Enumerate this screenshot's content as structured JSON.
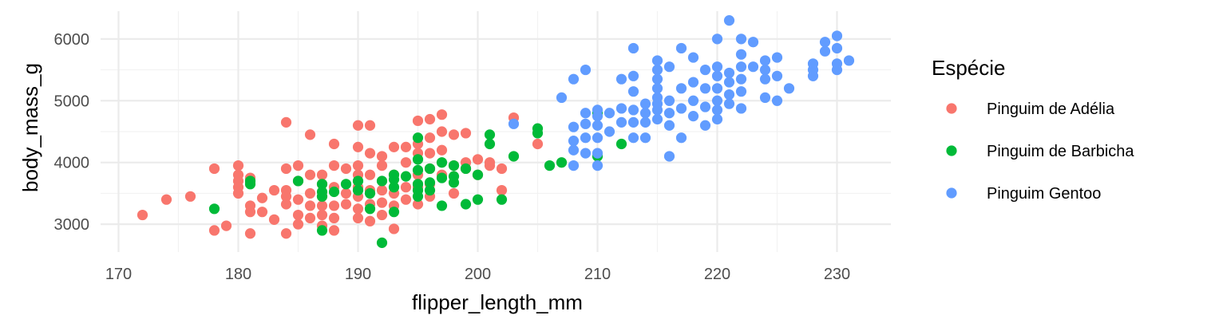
{
  "chart_data": {
    "type": "scatter",
    "title": "",
    "xlabel": "flipper_length_mm",
    "ylabel": "body_mass_g",
    "xlim": [
      168.5,
      234.5
    ],
    "ylim": [
      2550,
      6450
    ],
    "x_ticks": [
      170,
      180,
      190,
      200,
      210,
      220,
      230
    ],
    "y_ticks": [
      3000,
      4000,
      5000,
      6000
    ],
    "grid": true,
    "legend": {
      "title": "Espécie",
      "position": "right"
    },
    "series": [
      {
        "name": "Pinguim de Adélia",
        "color": "#F8766D",
        "points": [
          [
            172,
            3150
          ],
          [
            174,
            3400
          ],
          [
            176,
            3450
          ],
          [
            178,
            3900
          ],
          [
            178,
            2900
          ],
          [
            179,
            2975
          ],
          [
            180,
            3950
          ],
          [
            180,
            3800
          ],
          [
            180,
            3700
          ],
          [
            180,
            3600
          ],
          [
            180,
            3500
          ],
          [
            181,
            3750
          ],
          [
            181,
            3300
          ],
          [
            181,
            3200
          ],
          [
            181,
            2850
          ],
          [
            182,
            3425
          ],
          [
            182,
            3200
          ],
          [
            183,
            3550
          ],
          [
            183,
            3075
          ],
          [
            184,
            4650
          ],
          [
            184,
            3900
          ],
          [
            184,
            3550
          ],
          [
            184,
            3450
          ],
          [
            184,
            3325
          ],
          [
            184,
            2850
          ],
          [
            185,
            3950
          ],
          [
            185,
            3700
          ],
          [
            185,
            3400
          ],
          [
            185,
            3150
          ],
          [
            185,
            3000
          ],
          [
            186,
            4450
          ],
          [
            186,
            3800
          ],
          [
            186,
            3500
          ],
          [
            186,
            3300
          ],
          [
            186,
            3100
          ],
          [
            187,
            3800
          ],
          [
            187,
            3650
          ],
          [
            187,
            3450
          ],
          [
            187,
            3300
          ],
          [
            187,
            3150
          ],
          [
            187,
            2975
          ],
          [
            188,
            4300
          ],
          [
            188,
            3950
          ],
          [
            188,
            3600
          ],
          [
            188,
            3300
          ],
          [
            188,
            3100
          ],
          [
            188,
            2900
          ],
          [
            189,
            3900
          ],
          [
            189,
            3500
          ],
          [
            189,
            3325
          ],
          [
            190,
            4600
          ],
          [
            190,
            4250
          ],
          [
            190,
            3950
          ],
          [
            190,
            3800
          ],
          [
            190,
            3600
          ],
          [
            190,
            3450
          ],
          [
            190,
            3250
          ],
          [
            190,
            3100
          ],
          [
            191,
            4600
          ],
          [
            191,
            4150
          ],
          [
            191,
            3800
          ],
          [
            191,
            3550
          ],
          [
            191,
            3325
          ],
          [
            191,
            3050
          ],
          [
            192,
            4100
          ],
          [
            192,
            3950
          ],
          [
            192,
            3550
          ],
          [
            192,
            3350
          ],
          [
            192,
            3150
          ],
          [
            193,
            4250
          ],
          [
            193,
            3800
          ],
          [
            193,
            3500
          ],
          [
            193,
            3300
          ],
          [
            193,
            2925
          ],
          [
            194,
            4250
          ],
          [
            194,
            4000
          ],
          [
            194,
            3600
          ],
          [
            194,
            3400
          ],
          [
            195,
            4675
          ],
          [
            195,
            4300
          ],
          [
            195,
            4150
          ],
          [
            195,
            3800
          ],
          [
            195,
            3600
          ],
          [
            195,
            3325
          ],
          [
            196,
            4700
          ],
          [
            196,
            4400
          ],
          [
            196,
            4150
          ],
          [
            196,
            3900
          ],
          [
            196,
            3650
          ],
          [
            196,
            3450
          ],
          [
            197,
            4775
          ],
          [
            197,
            4500
          ],
          [
            197,
            4200
          ],
          [
            197,
            3800
          ],
          [
            198,
            4450
          ],
          [
            198,
            3950
          ],
          [
            198,
            3500
          ],
          [
            199,
            4475
          ],
          [
            199,
            4000
          ],
          [
            199,
            3900
          ],
          [
            200,
            4050
          ],
          [
            200,
            3800
          ],
          [
            201,
            4000
          ],
          [
            201,
            3950
          ],
          [
            202,
            3900
          ],
          [
            202,
            3550
          ],
          [
            203,
            4725
          ],
          [
            205,
            4300
          ]
        ]
      },
      {
        "name": "Pinguim de Barbicha",
        "color": "#00BA38",
        "points": [
          [
            178,
            3250
          ],
          [
            181,
            3700
          ],
          [
            181,
            3650
          ],
          [
            185,
            3700
          ],
          [
            187,
            3650
          ],
          [
            187,
            3525
          ],
          [
            187,
            3450
          ],
          [
            187,
            2900
          ],
          [
            188,
            3525
          ],
          [
            189,
            3650
          ],
          [
            190,
            3700
          ],
          [
            190,
            3550
          ],
          [
            191,
            3500
          ],
          [
            191,
            3250
          ],
          [
            192,
            3700
          ],
          [
            192,
            2700
          ],
          [
            193,
            3800
          ],
          [
            193,
            3725
          ],
          [
            193,
            3600
          ],
          [
            193,
            3200
          ],
          [
            194,
            3775
          ],
          [
            195,
            4400
          ],
          [
            195,
            4050
          ],
          [
            195,
            3875
          ],
          [
            195,
            3650
          ],
          [
            195,
            3550
          ],
          [
            195,
            3450
          ],
          [
            196,
            3900
          ],
          [
            196,
            3675
          ],
          [
            196,
            3550
          ],
          [
            197,
            4000
          ],
          [
            197,
            3750
          ],
          [
            197,
            3300
          ],
          [
            198,
            3950
          ],
          [
            198,
            3775
          ],
          [
            198,
            3675
          ],
          [
            199,
            3900
          ],
          [
            199,
            3325
          ],
          [
            200,
            3800
          ],
          [
            200,
            3400
          ],
          [
            201,
            4450
          ],
          [
            201,
            4300
          ],
          [
            202,
            3400
          ],
          [
            203,
            4100
          ],
          [
            205,
            4550
          ],
          [
            205,
            4475
          ],
          [
            206,
            3950
          ],
          [
            207,
            4000
          ],
          [
            210,
            4800
          ],
          [
            210,
            4100
          ],
          [
            212,
            4300
          ]
        ]
      },
      {
        "name": "Pinguim Gentoo",
        "color": "#619CFF",
        "points": [
          [
            203,
            4625
          ],
          [
            207,
            5050
          ],
          [
            208,
            5350
          ],
          [
            208,
            4575
          ],
          [
            208,
            4350
          ],
          [
            208,
            4200
          ],
          [
            208,
            3950
          ],
          [
            209,
            5500
          ],
          [
            209,
            4800
          ],
          [
            209,
            4625
          ],
          [
            209,
            4400
          ],
          [
            209,
            4150
          ],
          [
            210,
            4850
          ],
          [
            210,
            4750
          ],
          [
            210,
            4600
          ],
          [
            210,
            4400
          ],
          [
            210,
            4150
          ],
          [
            210,
            3950
          ],
          [
            211,
            4800
          ],
          [
            211,
            4500
          ],
          [
            212,
            5350
          ],
          [
            212,
            4875
          ],
          [
            212,
            4650
          ],
          [
            213,
            5850
          ],
          [
            213,
            5400
          ],
          [
            213,
            5150
          ],
          [
            213,
            4850
          ],
          [
            213,
            4650
          ],
          [
            213,
            4400
          ],
          [
            214,
            4950
          ],
          [
            214,
            4800
          ],
          [
            214,
            4650
          ],
          [
            214,
            4400
          ],
          [
            215,
            5650
          ],
          [
            215,
            5500
          ],
          [
            215,
            5350
          ],
          [
            215,
            5200
          ],
          [
            215,
            5050
          ],
          [
            215,
            4950
          ],
          [
            215,
            4850
          ],
          [
            215,
            4700
          ],
          [
            216,
            5550
          ],
          [
            216,
            5000
          ],
          [
            216,
            4800
          ],
          [
            216,
            4600
          ],
          [
            216,
            4100
          ],
          [
            217,
            5850
          ],
          [
            217,
            5200
          ],
          [
            217,
            4875
          ],
          [
            217,
            4400
          ],
          [
            218,
            5700
          ],
          [
            218,
            5300
          ],
          [
            218,
            5000
          ],
          [
            218,
            4750
          ],
          [
            219,
            5500
          ],
          [
            219,
            5200
          ],
          [
            219,
            4900
          ],
          [
            219,
            4600
          ],
          [
            220,
            6000
          ],
          [
            220,
            5550
          ],
          [
            220,
            5400
          ],
          [
            220,
            5200
          ],
          [
            220,
            5000
          ],
          [
            220,
            4850
          ],
          [
            220,
            4700
          ],
          [
            221,
            6300
          ],
          [
            221,
            5450
          ],
          [
            221,
            5300
          ],
          [
            221,
            5100
          ],
          [
            221,
            4950
          ],
          [
            222,
            6000
          ],
          [
            222,
            5750
          ],
          [
            222,
            5550
          ],
          [
            222,
            5350
          ],
          [
            222,
            5150
          ],
          [
            222,
            4875
          ],
          [
            223,
            5950
          ],
          [
            223,
            5550
          ],
          [
            224,
            5650
          ],
          [
            224,
            5500
          ],
          [
            224,
            5350
          ],
          [
            224,
            5050
          ],
          [
            225,
            5700
          ],
          [
            225,
            5400
          ],
          [
            225,
            5000
          ],
          [
            226,
            5200
          ],
          [
            228,
            5600
          ],
          [
            228,
            5500
          ],
          [
            228,
            5400
          ],
          [
            229,
            5950
          ],
          [
            229,
            5800
          ],
          [
            230,
            6050
          ],
          [
            230,
            5850
          ],
          [
            230,
            5600
          ],
          [
            230,
            5500
          ],
          [
            231,
            5650
          ]
        ]
      }
    ]
  }
}
